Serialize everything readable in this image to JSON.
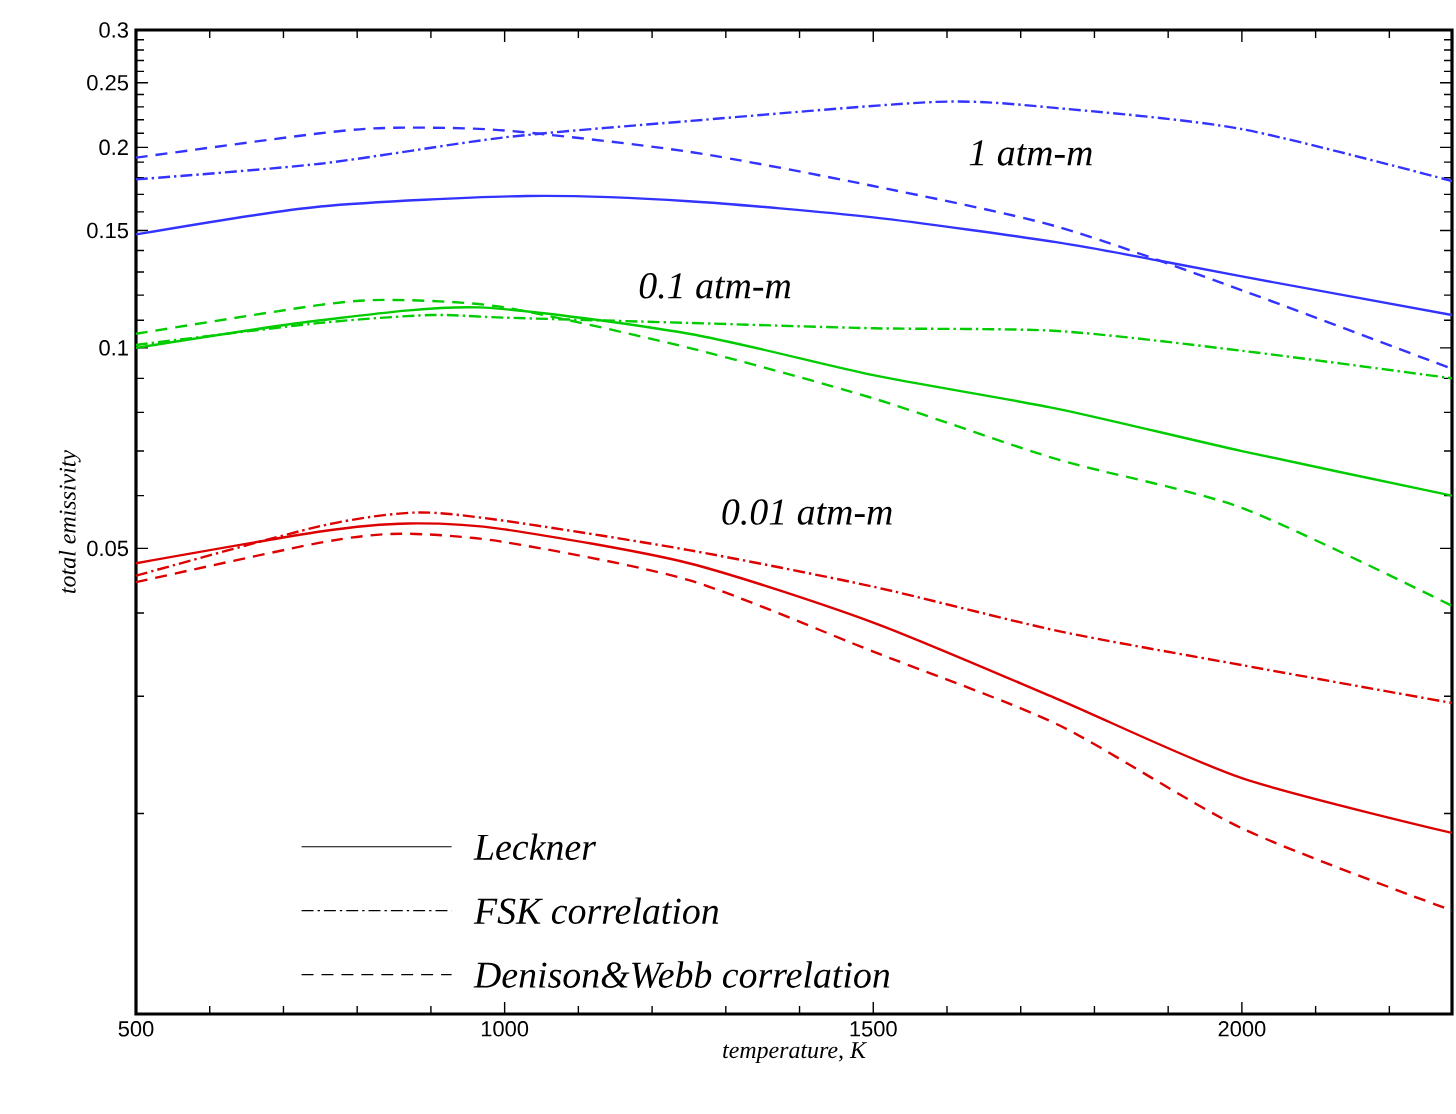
{
  "chart_data": {
    "type": "line",
    "xlabel": "temperature, K",
    "ylabel": "total emissivity",
    "xlim": [
      500,
      2285
    ],
    "ylim": [
      0.01,
      0.3
    ],
    "log": "y",
    "xticks": [
      500,
      {
        "value": 600,
        "label": null
      },
      {
        "value": 700,
        "label": null
      },
      {
        "value": 800,
        "label": null
      },
      {
        "value": 900,
        "label": null
      },
      1000,
      {
        "value": 1100,
        "label": null
      },
      {
        "value": 1200,
        "label": null
      },
      {
        "value": 1300,
        "label": null
      },
      {
        "value": 1400,
        "label": null
      },
      1500,
      {
        "value": 1600,
        "label": null
      },
      {
        "value": 1700,
        "label": null
      },
      {
        "value": 1800,
        "label": null
      },
      {
        "value": 1900,
        "label": null
      },
      2000,
      {
        "value": 2100,
        "label": null
      },
      {
        "value": 2200,
        "label": null
      }
    ],
    "yticks": [
      {
        "value": 0.02,
        "label": null
      },
      {
        "value": 0.03,
        "label": null
      },
      {
        "value": 0.04,
        "label": null
      },
      0.05,
      {
        "value": 0.06,
        "label": null
      },
      {
        "value": 0.07,
        "label": null
      },
      {
        "value": 0.08,
        "label": null
      },
      {
        "value": 0.09,
        "label": null
      },
      0.1,
      {
        "value": 0.11,
        "label": null
      },
      {
        "value": 0.12,
        "label": null
      },
      {
        "value": 0.13,
        "label": null
      },
      {
        "value": 0.14,
        "label": null
      },
      0.15,
      {
        "value": 0.16,
        "label": null
      },
      {
        "value": 0.17,
        "label": null
      },
      {
        "value": 0.18,
        "label": null
      },
      {
        "value": 0.19,
        "label": null
      },
      0.2,
      {
        "value": 0.21,
        "label": null
      },
      {
        "value": 0.22,
        "label": null
      },
      {
        "value": 0.23,
        "label": null
      },
      {
        "value": 0.24,
        "label": null
      },
      0.25,
      {
        "value": 0.26,
        "label": null
      },
      {
        "value": 0.27,
        "label": null
      },
      {
        "value": 0.28,
        "label": null
      },
      {
        "value": 0.29,
        "label": null
      },
      0.3
    ],
    "series": [
      {
        "color": "#dd0000",
        "line_style": "solid",
        "x": [
          500,
          750,
          870,
          1000,
          1250,
          1500,
          1750,
          2000,
          2285
        ],
        "values": [
          0.0475,
          0.053,
          0.0545,
          0.0534,
          0.0475,
          0.0387,
          0.0297,
          0.0226,
          0.0187
        ]
      },
      {
        "color": "#dd0000",
        "line_style": "dashdot",
        "x": [
          500,
          750,
          880,
          1000,
          1250,
          1500,
          1750,
          2000,
          2285
        ],
        "values": [
          0.0455,
          0.054,
          0.0566,
          0.055,
          0.0497,
          0.0438,
          0.0376,
          0.0334,
          0.0293
        ]
      },
      {
        "color": "#dd0000",
        "line_style": "dashed",
        "x": [
          500,
          750,
          860,
          1000,
          1250,
          1500,
          1750,
          2000,
          2285
        ],
        "values": [
          0.0445,
          0.051,
          0.0526,
          0.0511,
          0.0448,
          0.035,
          0.0272,
          0.019,
          0.0143
        ]
      },
      {
        "color": "#00cc00",
        "line_style": "solid",
        "x": [
          500,
          750,
          965,
          1250,
          1500,
          1750,
          2000,
          2285
        ],
        "values": [
          0.1,
          0.11,
          0.115,
          0.105,
          0.091,
          0.081,
          0.07,
          0.06
        ]
      },
      {
        "color": "#00cc00",
        "line_style": "dashdot",
        "x": [
          500,
          750,
          900,
          1000,
          1250,
          1500,
          1750,
          2000,
          2285
        ],
        "values": [
          0.101,
          0.109,
          0.112,
          0.111,
          0.109,
          0.107,
          0.106,
          0.099,
          0.09
        ]
      },
      {
        "color": "#00cc00",
        "line_style": "dashed",
        "x": [
          500,
          750,
          850,
          1000,
          1250,
          1500,
          1750,
          2000,
          2285
        ],
        "values": [
          0.105,
          0.116,
          0.118,
          0.115,
          0.1,
          0.084,
          0.068,
          0.0575,
          0.041
        ]
      },
      {
        "color": "#3333ff",
        "line_style": "solid",
        "x": [
          500,
          750,
          1030,
          1250,
          1500,
          1750,
          1890,
          2000,
          2285
        ],
        "values": [
          0.148,
          0.163,
          0.169,
          0.166,
          0.157,
          0.144,
          0.135,
          0.128,
          0.112
        ]
      },
      {
        "color": "#3333ff",
        "line_style": "dashdot",
        "x": [
          500,
          750,
          1000,
          1250,
          1586,
          1750,
          2000,
          2285
        ],
        "values": [
          0.179,
          0.189,
          0.207,
          0.219,
          0.234,
          0.229,
          0.213,
          0.178
        ]
      },
      {
        "color": "#3333ff",
        "line_style": "dashed",
        "x": [
          500,
          750,
          850,
          1000,
          1250,
          1500,
          1750,
          2000,
          2285
        ],
        "values": [
          0.193,
          0.21,
          0.214,
          0.212,
          0.197,
          0.175,
          0.152,
          0.122,
          0.093
        ]
      }
    ],
    "annotations": [
      "1 atm-m",
      "0.1 atm-m",
      "0.01 atm-m",
      "Leckner",
      "FSK correlation",
      "Denison&Webb correlation"
    ]
  }
}
